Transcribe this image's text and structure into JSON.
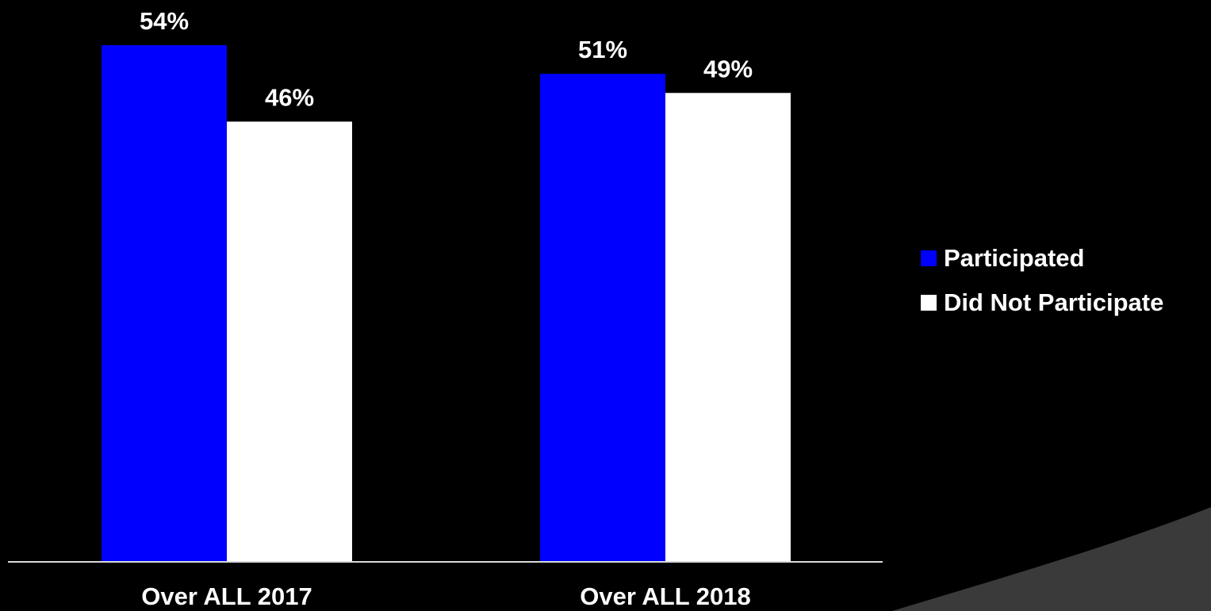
{
  "chart_data": {
    "type": "bar",
    "categories": [
      "Over ALL 2017",
      "Over ALL 2018"
    ],
    "series": [
      {
        "name": "Participated",
        "values": [
          54,
          51
        ],
        "labels": [
          "54%",
          "51%"
        ],
        "color": "#0000ff"
      },
      {
        "name": "Did Not Participate",
        "values": [
          46,
          49
        ],
        "labels": [
          "46%",
          "49%"
        ],
        "color": "#ffffff"
      }
    ],
    "ylim": [
      0,
      60
    ],
    "grid": false,
    "legend_position": "right",
    "title": "",
    "xlabel": "",
    "ylabel": ""
  },
  "colors": {
    "background": "#000000",
    "axis": "#d9d9d9",
    "text": "#ffffff",
    "corner_shape": "#3a3a3a"
  }
}
